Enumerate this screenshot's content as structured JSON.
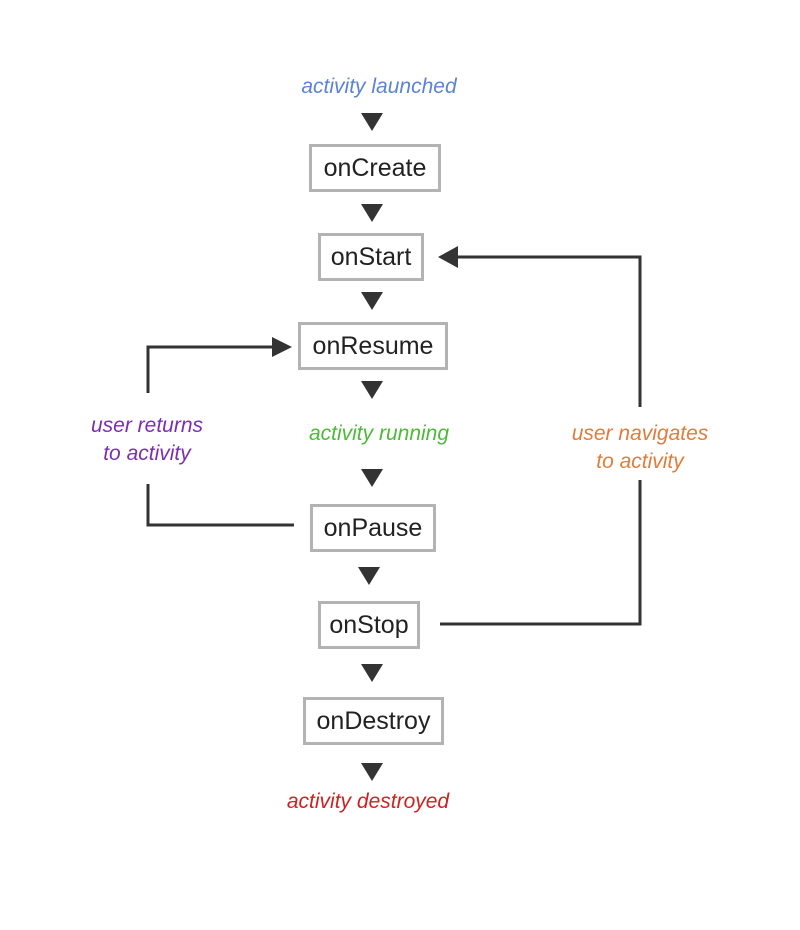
{
  "colors": {
    "launched": "#5b84d4",
    "running": "#4cbb3a",
    "destroyed": "#cc2222",
    "returns": "#7b2fb0",
    "navigates": "#e07d3c",
    "node_border": "#b3b3b3",
    "arrow": "#333333"
  },
  "states": {
    "launched": "activity launched",
    "running": "activity running",
    "destroyed": "activity destroyed"
  },
  "nodes": {
    "on_create": "onCreate",
    "on_start": "onStart",
    "on_resume": "onResume",
    "on_pause": "onPause",
    "on_stop": "onStop",
    "on_destroy": "onDestroy"
  },
  "loops": {
    "user_returns": [
      "user returns",
      "to activity"
    ],
    "user_navigates": [
      "user navigates",
      "to activity"
    ]
  }
}
